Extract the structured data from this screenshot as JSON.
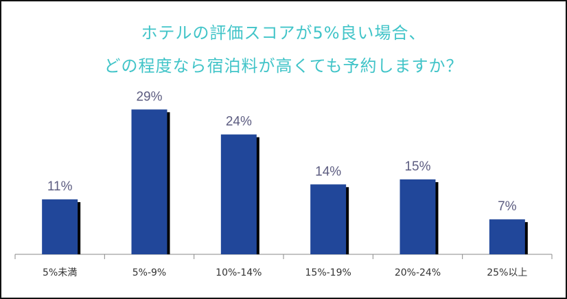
{
  "chart_data": {
    "type": "bar",
    "title_lines": [
      "ホテルの評価スコアが5%良い場合、",
      "どの程度なら宿泊料が高くても予約しますか？"
    ],
    "categories": [
      "5%未満",
      "5%-9%",
      "10%-14%",
      "15%-19%",
      "20%-24%",
      "25%以上"
    ],
    "values": [
      11,
      29,
      24,
      14,
      15,
      7
    ],
    "value_labels": [
      "11%",
      "29%",
      "24%",
      "14%",
      "15%",
      "7%"
    ],
    "ylim": [
      0,
      30
    ],
    "grid": false,
    "legend": "none",
    "bar_color": "#21479a",
    "bar_shadow_color": "#000000",
    "title_color": "#41c4c8"
  }
}
